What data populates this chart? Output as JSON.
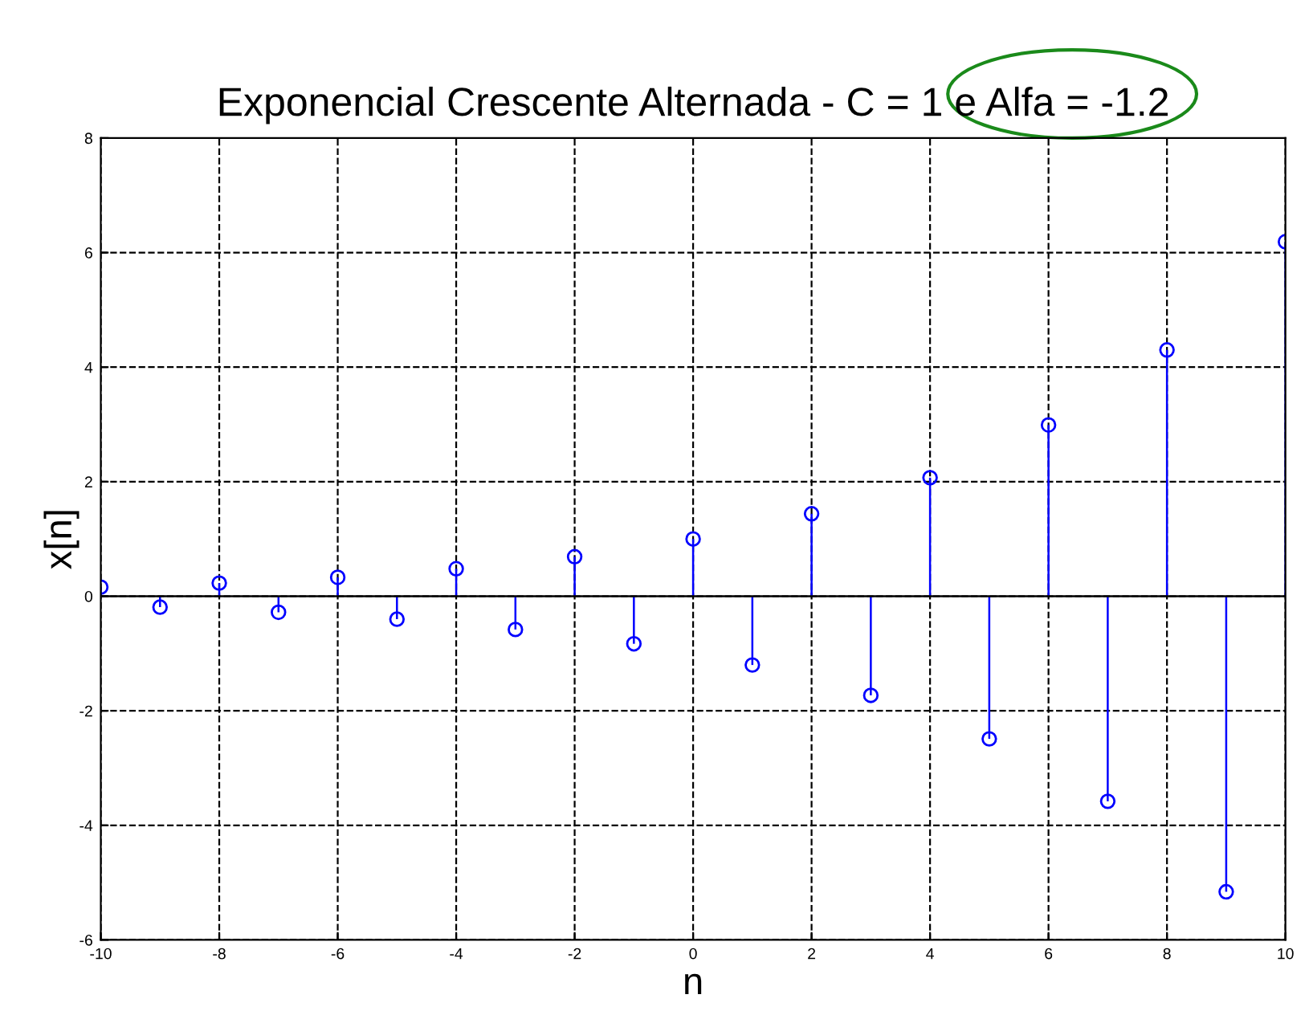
{
  "chart_data": {
    "type": "lollipop",
    "title": "Exponencial Crescente Alternada - C = 1 e Alfa = -1.2",
    "xlabel": "n",
    "ylabel": "x[n]",
    "x": [
      -10,
      -9,
      -8,
      -7,
      -6,
      -5,
      -4,
      -3,
      -2,
      -1,
      0,
      1,
      2,
      3,
      4,
      5,
      6,
      7,
      8,
      9,
      10
    ],
    "series": [
      {
        "color": "#0000ff",
        "values": [
          0.16,
          -0.19,
          0.23,
          -0.28,
          0.33,
          -0.4,
          0.48,
          -0.58,
          0.69,
          -0.83,
          1,
          -1.2,
          1.44,
          -1.73,
          2.07,
          -2.49,
          2.99,
          -3.58,
          4.3,
          -5.16,
          6.19
        ]
      }
    ],
    "xlim": [
      -10,
      10
    ],
    "ylim": [
      -6,
      8
    ],
    "xticks": [
      -10,
      -8,
      -6,
      -4,
      -2,
      0,
      2,
      4,
      6,
      8,
      10
    ],
    "yticks": [
      -6,
      -4,
      -2,
      0,
      2,
      4,
      6,
      8
    ],
    "grid": true,
    "marker": "circle",
    "line_style": "dashed"
  }
}
